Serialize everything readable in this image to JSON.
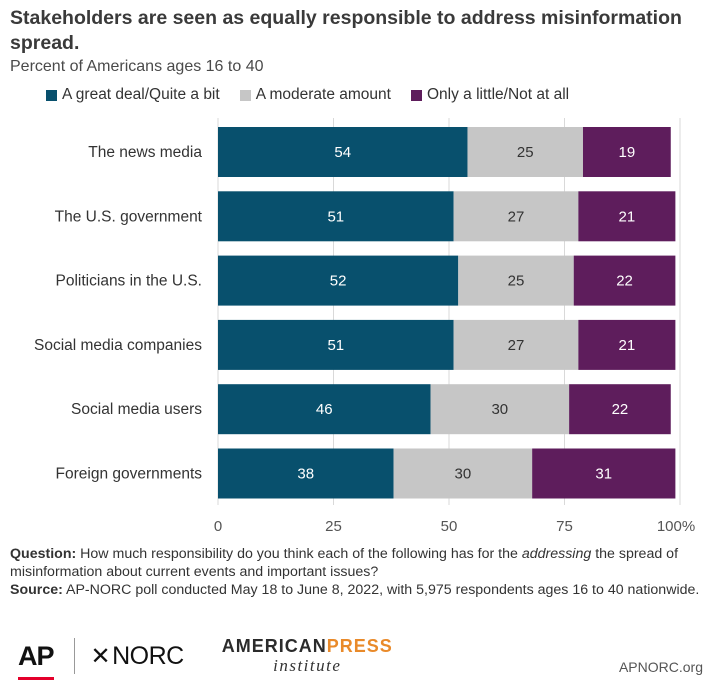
{
  "colors": {
    "great_deal": "#08506d",
    "moderate": "#c6c6c6",
    "little": "#5e1d5c",
    "gridline": "#d9d9d9"
  },
  "chart_data": {
    "type": "bar",
    "orientation": "horizontal",
    "stacked": true,
    "title": "Stakeholders are seen as equally responsible to address misinformation spread.",
    "subtitle": "Percent of Americans ages 16 to 40",
    "categories": [
      "The news media",
      "The U.S. government",
      "Politicians in the U.S.",
      "Social media companies",
      "Social media users",
      "Foreign governments"
    ],
    "series": [
      {
        "name": "A great deal/Quite a bit",
        "color": "#08506d",
        "values": [
          54,
          51,
          52,
          51,
          46,
          38
        ]
      },
      {
        "name": "A moderate amount",
        "color": "#c6c6c6",
        "values": [
          25,
          27,
          25,
          27,
          30,
          30
        ]
      },
      {
        "name": "Only a little/Not at all",
        "color": "#5e1d5c",
        "values": [
          19,
          21,
          22,
          21,
          22,
          31
        ]
      }
    ],
    "xlim": [
      0,
      100
    ],
    "xticks": [
      "0",
      "25",
      "50",
      "75",
      "100%"
    ],
    "legend_position": "top",
    "grid": true
  },
  "footer": {
    "question_label": "Question:",
    "question_text_1": "How much responsibility do you think each of the following has for the",
    "question_emph": "addressing",
    "question_text_2": "the spread of misinformation about current events and important issues?",
    "source_label": "Source:",
    "source_text": "AP-NORC poll conducted May 18 to June 8, 2022, with 5,975 respondents ages 16 to 40 nationwide."
  },
  "logos": {
    "ap": "AP",
    "norc_mark": "✕",
    "norc": "NORC",
    "api_american": "AMERICAN",
    "api_press": "PRESS",
    "api_institute": "institute"
  },
  "credit": "APNORC.org"
}
